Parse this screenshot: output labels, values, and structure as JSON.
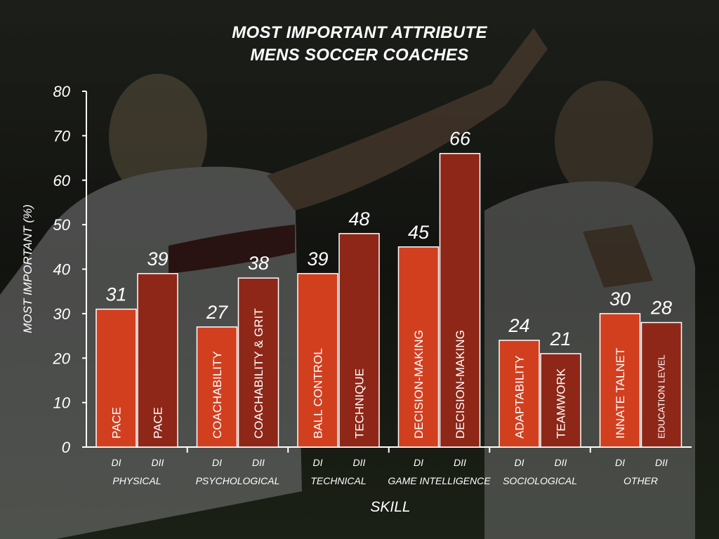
{
  "title": [
    "MOST IMPORTANT ATTRIBUTE",
    "MENS SOCCER COACHES"
  ],
  "chart_data": {
    "type": "bar",
    "title": "MOST IMPORTANT ATTRIBUTE MENS SOCCER COACHES",
    "xlabel": "SKILL",
    "ylabel": "MOST IMPORTANT (%)",
    "ylim": [
      0,
      80
    ],
    "yticks": [
      0,
      10,
      20,
      30,
      40,
      50,
      60,
      70,
      80
    ],
    "grid": false,
    "groups": [
      {
        "name": "PHYSICAL",
        "bars": [
          {
            "division": "DI",
            "label": "PACE",
            "value": 31
          },
          {
            "division": "DII",
            "label": "PACE",
            "value": 39
          }
        ]
      },
      {
        "name": "PSYCHOLOGICAL",
        "bars": [
          {
            "division": "DI",
            "label": "COACHABILITY",
            "value": 27
          },
          {
            "division": "DII",
            "label": "COACHABILITY & GRIT",
            "value": 38
          }
        ]
      },
      {
        "name": "TECHNICAL",
        "bars": [
          {
            "division": "DI",
            "label": "BALL CONTROL",
            "value": 39
          },
          {
            "division": "DII",
            "label": "TECHNIQUE",
            "value": 48
          }
        ]
      },
      {
        "name": "GAME INTELLIGENCE",
        "bars": [
          {
            "division": "DI",
            "label": "DECISION-MAKING",
            "value": 45
          },
          {
            "division": "DII",
            "label": "DECISION-MAKING",
            "value": 66
          }
        ]
      },
      {
        "name": "SOCIOLOGICAL",
        "bars": [
          {
            "division": "DI",
            "label": "ADAPTABILITY",
            "value": 24
          },
          {
            "division": "DII",
            "label": "TEAMWORK",
            "value": 21
          }
        ]
      },
      {
        "name": "OTHER",
        "bars": [
          {
            "division": "DI",
            "label": "INNATE TALNET",
            "value": 30
          },
          {
            "division": "DII",
            "label": "EDUCATION LEVEL",
            "value": 28
          }
        ]
      }
    ],
    "colors": {
      "DI": "#d23f1f",
      "DII": "#8e2718",
      "text": "#ffffff",
      "axis": "#ffffff"
    }
  }
}
